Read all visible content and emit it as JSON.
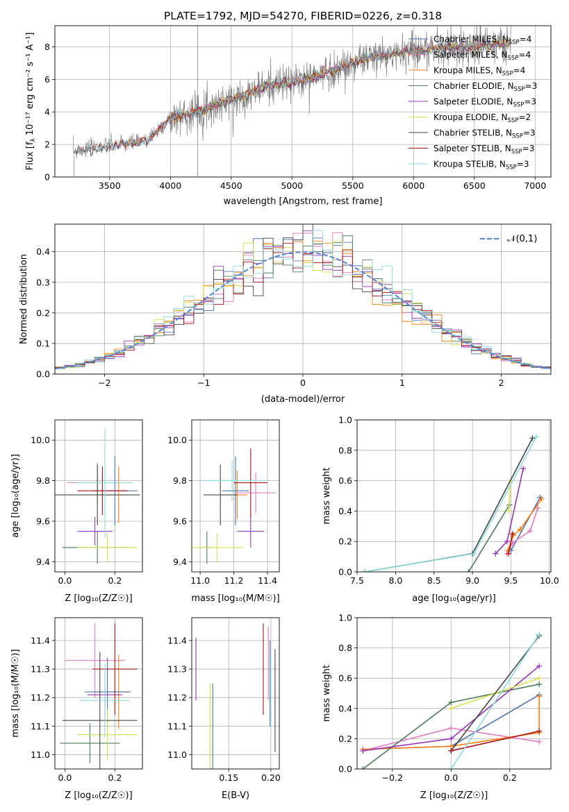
{
  "figure_title": "PLATE=1792, MJD=54270, FIBERID=0226, z=0.318",
  "colors": {
    "chab_miles": "#4c72b0",
    "salp_miles": "#e377c2",
    "krou_miles": "#ff7f0e",
    "chab_elodie": "#4a7a5a",
    "salp_elodie": "#9933bb",
    "krou_elodie": "#d4e04a",
    "chab_stelib": "#444444",
    "salp_stelib": "#aa1111",
    "krou_stelib": "#88dddd",
    "gauss": "#5b8bd8",
    "data": "#808080"
  },
  "chart_data": [
    {
      "id": "spectrum",
      "type": "line",
      "xlabel": "wavelength [Angstrom, rest frame]",
      "ylabel_prefix": "Flux [f",
      "ylabel_rest": " 10⁻¹⁷ erg cm⁻² s⁻¹ A⁻¹]",
      "xlim": [
        3050,
        7130
      ],
      "ylim": [
        0,
        9.3
      ],
      "xticks": [
        "3500",
        "4000",
        "4500",
        "5000",
        "5500",
        "6000",
        "6500",
        "7000"
      ],
      "yticks": [
        "0",
        "2",
        "4",
        "6",
        "8"
      ],
      "legend": [
        "Chabrier MILES, N_SSP=4",
        "Salpeter MILES, N_SSP=4",
        "Kroupa MILES, N_SSP=4",
        "Chabrier ELODIE, N_SSP=3",
        "Salpeter ELODIE, N_SSP=3",
        "Kroupa ELODIE, N_SSP=2",
        "Chabrier STELIB, N_SSP=3",
        "Salpeter STELIB, N_SSP=3",
        "Kroupa STELIB, N_SSP=3"
      ],
      "legend_position": "upper right",
      "continuum": [
        [
          3200,
          1.6
        ],
        [
          3500,
          1.9
        ],
        [
          3800,
          2.2
        ],
        [
          4000,
          3.6
        ],
        [
          4200,
          4.0
        ],
        [
          4400,
          4.5
        ],
        [
          4600,
          5.0
        ],
        [
          4800,
          5.6
        ],
        [
          5000,
          5.8
        ],
        [
          5200,
          6.2
        ],
        [
          5400,
          6.7
        ],
        [
          5600,
          7.3
        ],
        [
          5800,
          7.5
        ],
        [
          6000,
          7.8
        ],
        [
          6200,
          7.9
        ],
        [
          6400,
          8.0
        ],
        [
          6600,
          8.1
        ],
        [
          6800,
          8.2
        ]
      ],
      "data_range": [
        3200,
        6800
      ],
      "data_noise": 1.0
    },
    {
      "id": "residuals",
      "type": "line",
      "xlabel": "(data-model)/error",
      "ylabel": "Normed distribution",
      "xlim": [
        -2.5,
        2.5
      ],
      "ylim": [
        0,
        0.49
      ],
      "xticks": [
        "−2",
        "−1",
        "0",
        "1",
        "2"
      ],
      "yticks": [
        "0.0",
        "0.1",
        "0.2",
        "0.3",
        "0.4"
      ],
      "legend": "𝒩(0,1)",
      "bin_width": 0.1
    },
    {
      "id": "z-age",
      "type": "scatter",
      "xlabel": "Z [log₁₀(Z/Z☉)]",
      "ylabel": "age  [log₁₀(age/yr)]",
      "xlim": [
        -0.04,
        0.31
      ],
      "ylim": [
        9.35,
        10.1
      ],
      "xticks": [
        "0.0",
        "0.2"
      ],
      "yticks": [
        "9.4",
        "9.6",
        "9.8",
        "10.0"
      ],
      "errorbars": [
        {
          "s": "salp_miles",
          "x": 0.13,
          "xe": 0.12,
          "y": 9.79,
          "ye": 0.1
        },
        {
          "s": "krou_miles",
          "x": 0.215,
          "xe": 0.05,
          "y": 9.73,
          "ye": 0.14
        },
        {
          "s": "chab_miles",
          "x": 0.2,
          "xe": 0.09,
          "y": 9.75,
          "ye": 0.17
        },
        {
          "s": "chab_elodie",
          "x": 0.13,
          "xe": 0.14,
          "y": 9.47,
          "ye": 0.08
        },
        {
          "s": "salp_elodie",
          "x": 0.12,
          "xe": 0.07,
          "y": 9.55,
          "ye": 0.07
        },
        {
          "s": "krou_elodie",
          "x": 0.17,
          "xe": 0.12,
          "y": 9.47,
          "ye": 0.07
        },
        {
          "s": "chab_stelib",
          "x": 0.13,
          "xe": 0.17,
          "y": 9.73,
          "ye": 0.15
        },
        {
          "s": "salp_stelib",
          "x": 0.15,
          "xe": 0.1,
          "y": 9.75,
          "ye": 0.12
        },
        {
          "s": "krou_stelib",
          "x": 0.16,
          "xe": 0.11,
          "y": 9.79,
          "ye": 0.27
        }
      ]
    },
    {
      "id": "mass-age",
      "type": "scatter",
      "xlabel": "mass [log₁₀(M/M☉)]",
      "xlim": [
        10.95,
        11.47
      ],
      "ylim": [
        9.35,
        10.1
      ],
      "xticks": [
        "11.0",
        "11.2",
        "11.4"
      ],
      "yticks": [
        "9.4",
        "9.6",
        "9.8",
        "10.0"
      ],
      "errorbars": [
        {
          "s": "salp_miles",
          "x": 11.33,
          "xe": 0.12,
          "y": 9.74,
          "ye": 0.1
        },
        {
          "s": "krou_miles",
          "x": 11.22,
          "xe": 0.06,
          "y": 9.73,
          "ye": 0.12
        },
        {
          "s": "chab_miles",
          "x": 11.21,
          "xe": 0.08,
          "y": 9.75,
          "ye": 0.17
        },
        {
          "s": "chab_elodie",
          "x": 11.04,
          "xe": 0.05,
          "y": 9.47,
          "ye": 0.08
        },
        {
          "s": "salp_elodie",
          "x": 11.3,
          "xe": 0.08,
          "y": 9.55,
          "ye": 0.08
        },
        {
          "s": "krou_elodie",
          "x": 11.1,
          "xe": 0.15,
          "y": 9.47,
          "ye": 0.07
        },
        {
          "s": "chab_stelib",
          "x": 11.12,
          "xe": 0.1,
          "y": 9.73,
          "ye": 0.15
        },
        {
          "s": "salp_stelib",
          "x": 11.3,
          "xe": 0.1,
          "y": 9.79,
          "ye": 0.17
        },
        {
          "s": "krou_stelib",
          "x": 11.19,
          "xe": 0.17,
          "y": 9.8,
          "ye": 0.1
        }
      ]
    },
    {
      "id": "age-weight",
      "type": "line",
      "xlabel": "age  [log₁₀(age/yr)]",
      "ylabel": "mass weight",
      "xlim": [
        7.5,
        10.02
      ],
      "ylim": [
        0,
        1.0
      ],
      "xticks": [
        "7.5",
        "8.0",
        "8.5",
        "9.0",
        "9.5",
        "10.0"
      ],
      "yticks": [
        "0.0",
        "0.2",
        "0.4",
        "0.6",
        "0.8",
        "1.0"
      ],
      "series": [
        {
          "s": "chab_miles",
          "x": [
            9.5,
            9.88
          ],
          "y": [
            0.14,
            0.49
          ]
        },
        {
          "s": "salp_miles",
          "x": [
            9.45,
            9.52,
            9.75,
            9.85
          ],
          "y": [
            0.12,
            0.19,
            0.27,
            0.42
          ]
        },
        {
          "s": "krou_miles",
          "x": [
            9.46,
            9.53,
            9.62,
            9.9
          ],
          "y": [
            0.14,
            0.24,
            0.28,
            0.48
          ]
        },
        {
          "s": "chab_elodie",
          "x": [
            8.95,
            9.48
          ],
          "y": [
            0.0,
            0.44
          ]
        },
        {
          "s": "salp_elodie",
          "x": [
            9.3,
            9.45,
            9.66
          ],
          "y": [
            0.12,
            0.2,
            0.68
          ]
        },
        {
          "s": "krou_elodie",
          "x": [
            9.47,
            9.5
          ],
          "y": [
            0.4,
            0.6
          ]
        },
        {
          "s": "chab_stelib",
          "x": [
            7.6,
            9.0,
            9.78
          ],
          "y": [
            0.0,
            0.12,
            0.88
          ]
        },
        {
          "s": "salp_stelib",
          "x": [
            9.47,
            9.52
          ],
          "y": [
            0.12,
            0.25
          ]
        },
        {
          "s": "krou_stelib",
          "x": [
            7.6,
            9.02,
            9.83
          ],
          "y": [
            0.0,
            0.12,
            0.89
          ]
        }
      ]
    },
    {
      "id": "z-mass",
      "type": "scatter",
      "xlabel": "Z [log₁₀(Z/Z☉)]",
      "ylabel": "mass [log₁₀(M/M☉)]",
      "xlim": [
        -0.04,
        0.31
      ],
      "ylim": [
        10.95,
        11.48
      ],
      "xticks": [
        "0.0",
        "0.2"
      ],
      "yticks": [
        "11.0",
        "11.1",
        "11.2",
        "11.3",
        "11.4"
      ],
      "errorbars": [
        {
          "s": "salp_miles",
          "x": 0.12,
          "xe": 0.12,
          "y": 11.33,
          "ye": 0.13
        },
        {
          "s": "krou_miles",
          "x": 0.215,
          "xe": 0.05,
          "y": 11.22,
          "ye": 0.13
        },
        {
          "s": "chab_miles",
          "x": 0.17,
          "xe": 0.09,
          "y": 11.22,
          "ye": 0.12
        },
        {
          "s": "chab_elodie",
          "x": 0.1,
          "xe": 0.12,
          "y": 11.04,
          "ye": 0.07
        },
        {
          "s": "salp_elodie",
          "x": 0.16,
          "xe": 0.07,
          "y": 11.21,
          "ye": 0.08
        },
        {
          "s": "krou_elodie",
          "x": 0.17,
          "xe": 0.12,
          "y": 11.07,
          "ye": 0.09
        },
        {
          "s": "chab_stelib",
          "x": 0.14,
          "xe": 0.15,
          "y": 11.12,
          "ye": 0.24
        },
        {
          "s": "salp_stelib",
          "x": 0.2,
          "xe": 0.09,
          "y": 11.3,
          "ye": 0.16
        },
        {
          "s": "krou_stelib",
          "x": 0.16,
          "xe": 0.1,
          "y": 11.19,
          "ye": 0.13
        }
      ]
    },
    {
      "id": "ebv-mass",
      "type": "scatter",
      "xlabel": "E(B-V)",
      "xlim": [
        0.106,
        0.21
      ],
      "ylim": [
        10.95,
        11.48
      ],
      "xticks": [
        "0.15",
        "0.20"
      ],
      "yticks": [
        "11.0",
        "11.1",
        "11.2",
        "11.3",
        "11.4"
      ],
      "errorbars": [
        {
          "s": "salp_elodie",
          "x": 0.111,
          "y": 11.3,
          "ye": 0.11
        },
        {
          "s": "krou_elodie",
          "x": 0.128,
          "y": 11.07,
          "ye": 0.18
        },
        {
          "s": "chab_elodie",
          "x": 0.131,
          "y": 11.07,
          "ye": 0.18
        },
        {
          "s": "salp_stelib",
          "x": 0.191,
          "y": 11.3,
          "ye": 0.16
        },
        {
          "s": "salp_miles",
          "x": 0.197,
          "y": 11.32,
          "ye": 0.13
        },
        {
          "s": "chab_miles",
          "x": 0.199,
          "y": 11.25,
          "ye": 0.15
        },
        {
          "s": "krou_stelib",
          "x": 0.2,
          "y": 11.22,
          "ye": 0.13
        },
        {
          "s": "chab_stelib",
          "x": 0.205,
          "y": 11.19,
          "ye": 0.18
        }
      ]
    },
    {
      "id": "z-weight",
      "type": "line",
      "xlabel": "Z [log₁₀(Z/Z☉)]",
      "ylabel": "mass weight",
      "xlim": [
        -0.32,
        0.34
      ],
      "ylim": [
        0,
        1.0
      ],
      "xticks": [
        "−0.2",
        "0.0",
        "0.2"
      ],
      "yticks": [
        "0.0",
        "0.2",
        "0.4",
        "0.6",
        "0.8",
        "1.0"
      ],
      "series": [
        {
          "s": "chab_miles",
          "x": [
            -0.3,
            0.0,
            0.3
          ],
          "y": [
            0.13,
            0.15,
            0.49
          ]
        },
        {
          "s": "salp_miles",
          "x": [
            -0.3,
            0.0,
            0.3
          ],
          "y": [
            0.12,
            0.27,
            0.18
          ]
        },
        {
          "s": "krou_miles",
          "x": [
            -0.3,
            0.0,
            0.3,
            0.3
          ],
          "y": [
            0.13,
            0.15,
            0.24,
            0.48
          ]
        },
        {
          "s": "chab_elodie",
          "x": [
            -0.3,
            0.0,
            0.3
          ],
          "y": [
            0.0,
            0.44,
            0.56
          ]
        },
        {
          "s": "salp_elodie",
          "x": [
            -0.3,
            0.0,
            0.3
          ],
          "y": [
            0.12,
            0.2,
            0.68
          ]
        },
        {
          "s": "krou_elodie",
          "x": [
            0.0,
            0.3
          ],
          "y": [
            0.4,
            0.6
          ]
        },
        {
          "s": "chab_stelib",
          "x": [
            0.0,
            0.3
          ],
          "y": [
            0.12,
            0.88
          ]
        },
        {
          "s": "salp_stelib",
          "x": [
            0.0,
            0.3
          ],
          "y": [
            0.12,
            0.25
          ]
        },
        {
          "s": "krou_stelib",
          "x": [
            0.0,
            0.3
          ],
          "y": [
            0.0,
            0.89
          ]
        }
      ]
    }
  ]
}
